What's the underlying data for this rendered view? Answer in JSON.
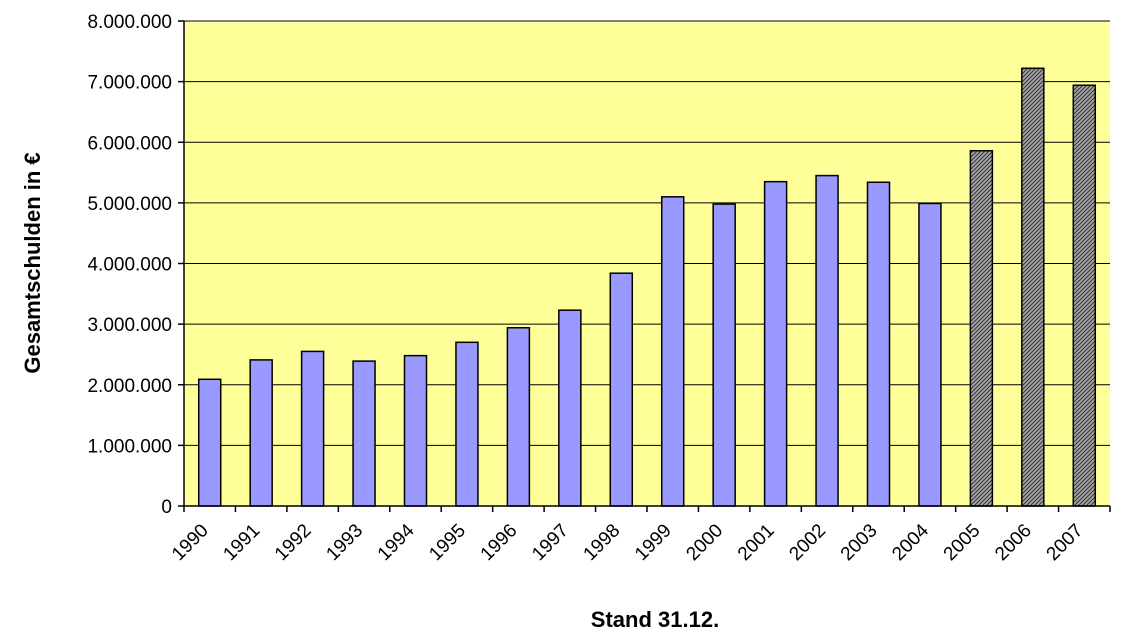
{
  "chart_data": {
    "type": "bar",
    "title": "",
    "xlabel": "Stand 31.12.",
    "ylabel": "Gesamtschulden in €",
    "ylim": [
      0,
      8000000
    ],
    "y_ticks": [
      0,
      1000000,
      2000000,
      3000000,
      4000000,
      5000000,
      6000000,
      7000000,
      8000000
    ],
    "y_tick_labels": [
      "0",
      "1.000.000",
      "2.000.000",
      "3.000.000",
      "4.000.000",
      "5.000.000",
      "6.000.000",
      "7.000.000",
      "8.000.000"
    ],
    "categories": [
      "1990",
      "1991",
      "1992",
      "1993",
      "1994",
      "1995",
      "1996",
      "1997",
      "1998",
      "1999",
      "2000",
      "2001",
      "2002",
      "2003",
      "2004",
      "2005",
      "2006",
      "2007"
    ],
    "values": [
      2090000,
      2410000,
      2550000,
      2390000,
      2480000,
      2700000,
      2940000,
      3230000,
      3840000,
      5100000,
      4980000,
      5350000,
      5450000,
      5340000,
      4990000,
      5860000,
      7220000,
      6940000
    ],
    "grid": true,
    "colors": {
      "plot_background": "#ffff99",
      "bar_fill": "#9999ff",
      "bar_fill_highlighted": "#8c8c8c",
      "bar_stroke": "#000000",
      "gridline": "#000000"
    },
    "highlighted_categories": [
      "2005",
      "2006",
      "2007"
    ]
  }
}
